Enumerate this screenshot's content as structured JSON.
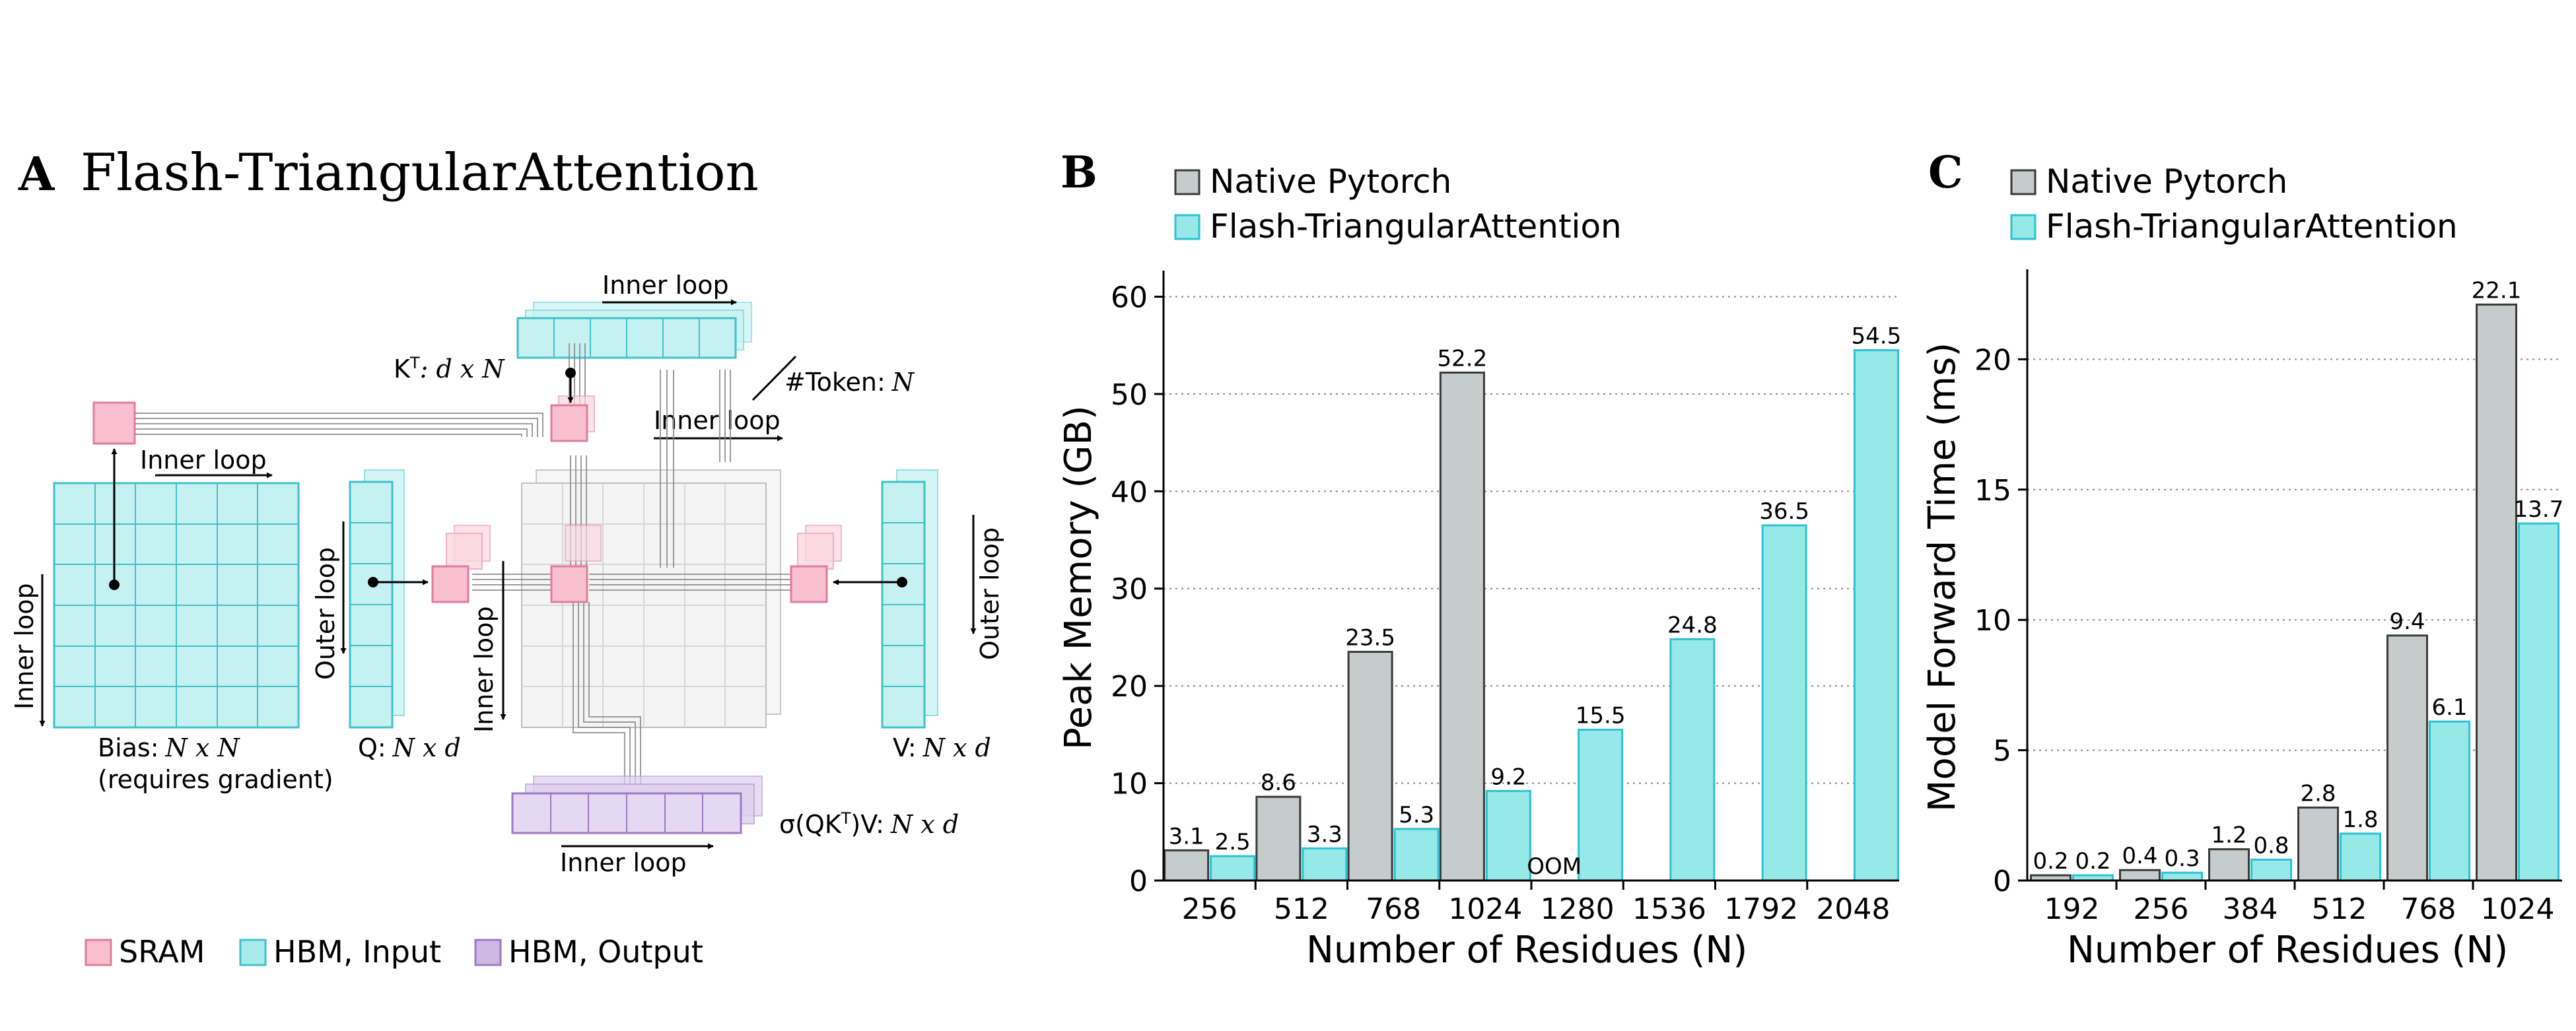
{
  "panel_a": {
    "label": "A",
    "title": "Flash-TriangularAttention",
    "inner_loop_top": "Inner loop",
    "inner_loop_mid": "Inner loop",
    "inner_loop_bias": "Inner loop",
    "inner_loop_bottom": "Inner loop",
    "inner_loop_vertical": "Inner loop",
    "inner_loop_center": "Inner loop",
    "outer_loop_left": "Outer loop",
    "outer_loop_right": "Outer loop",
    "kt_label": "K",
    "kt_sup": "T",
    "kt_dims": ": d x N",
    "token_label": "#Token:",
    "token_var": "N",
    "bias_label": "Bias:",
    "bias_dims": "N x N",
    "bias_note": "(requires gradient)",
    "q_label": "Q:",
    "q_dims": "N x d",
    "v_label": "V:",
    "v_dims": "N x d",
    "out_label_pre": "σ(QK",
    "out_label_sup": "T",
    "out_label_post": ")V:",
    "out_dims": "N x d",
    "legend": [
      {
        "label": "SRAM",
        "color": "#f7bfd0",
        "edge": "#e07c9a"
      },
      {
        "label": "HBM, Input",
        "color": "#a8ebeb",
        "edge": "#3fc1c9"
      },
      {
        "label": "HBM, Output",
        "color": "#cdb8e3",
        "edge": "#9b7ac4"
      }
    ]
  },
  "colors": {
    "native": "#c6cbcb",
    "native_edge": "#3a3a3a",
    "flash": "#96e9e6",
    "flash_edge": "#2cc2d4",
    "grid": "#888888",
    "axis": "#000000"
  },
  "chart_data": [
    {
      "panel": "B",
      "type": "bar",
      "title": "",
      "xlabel": "Number of Residues (N)",
      "ylabel": "Peak Memory (GB)",
      "ylim": [
        0,
        62
      ],
      "yticks": [
        0,
        10,
        20,
        30,
        40,
        50,
        60
      ],
      "categories": [
        "256",
        "512",
        "768",
        "1024",
        "1280",
        "1536",
        "1792",
        "2048"
      ],
      "series": [
        {
          "name": "Native Pytorch",
          "values": [
            3.1,
            8.6,
            23.5,
            52.2,
            null,
            null,
            null,
            null
          ],
          "labels": [
            "3.1",
            "8.6",
            "23.5",
            "52.2",
            "OOM",
            null,
            null,
            null
          ]
        },
        {
          "name": "Flash-TriangularAttention",
          "values": [
            2.5,
            3.3,
            5.3,
            9.2,
            15.5,
            24.8,
            36.5,
            54.5
          ],
          "labels": [
            "2.5",
            "3.3",
            "5.3",
            "9.2",
            "15.5",
            "24.8",
            "36.5",
            "54.5"
          ]
        }
      ],
      "legend": "top-left",
      "grid": "horizontal dotted"
    },
    {
      "panel": "C",
      "type": "bar",
      "title": "",
      "xlabel": "Number of Residues (N)",
      "ylabel": "Model Forward Time (ms)",
      "ylim": [
        0,
        23.2
      ],
      "yticks": [
        0,
        5,
        10,
        15,
        20
      ],
      "categories": [
        "192",
        "256",
        "384",
        "512",
        "768",
        "1024"
      ],
      "series": [
        {
          "name": "Native Pytorch",
          "values": [
            0.2,
            0.4,
            1.2,
            2.8,
            9.4,
            22.1
          ],
          "labels": [
            "0.2",
            "0.4",
            "1.2",
            "2.8",
            "9.4",
            "22.1"
          ]
        },
        {
          "name": "Flash-TriangularAttention",
          "values": [
            0.2,
            0.3,
            0.8,
            1.8,
            6.1,
            13.7
          ],
          "labels": [
            "0.2",
            "0.3",
            "0.8",
            "1.8",
            "6.1",
            "13.7"
          ]
        }
      ],
      "legend": "top-left",
      "grid": "horizontal dotted"
    }
  ]
}
